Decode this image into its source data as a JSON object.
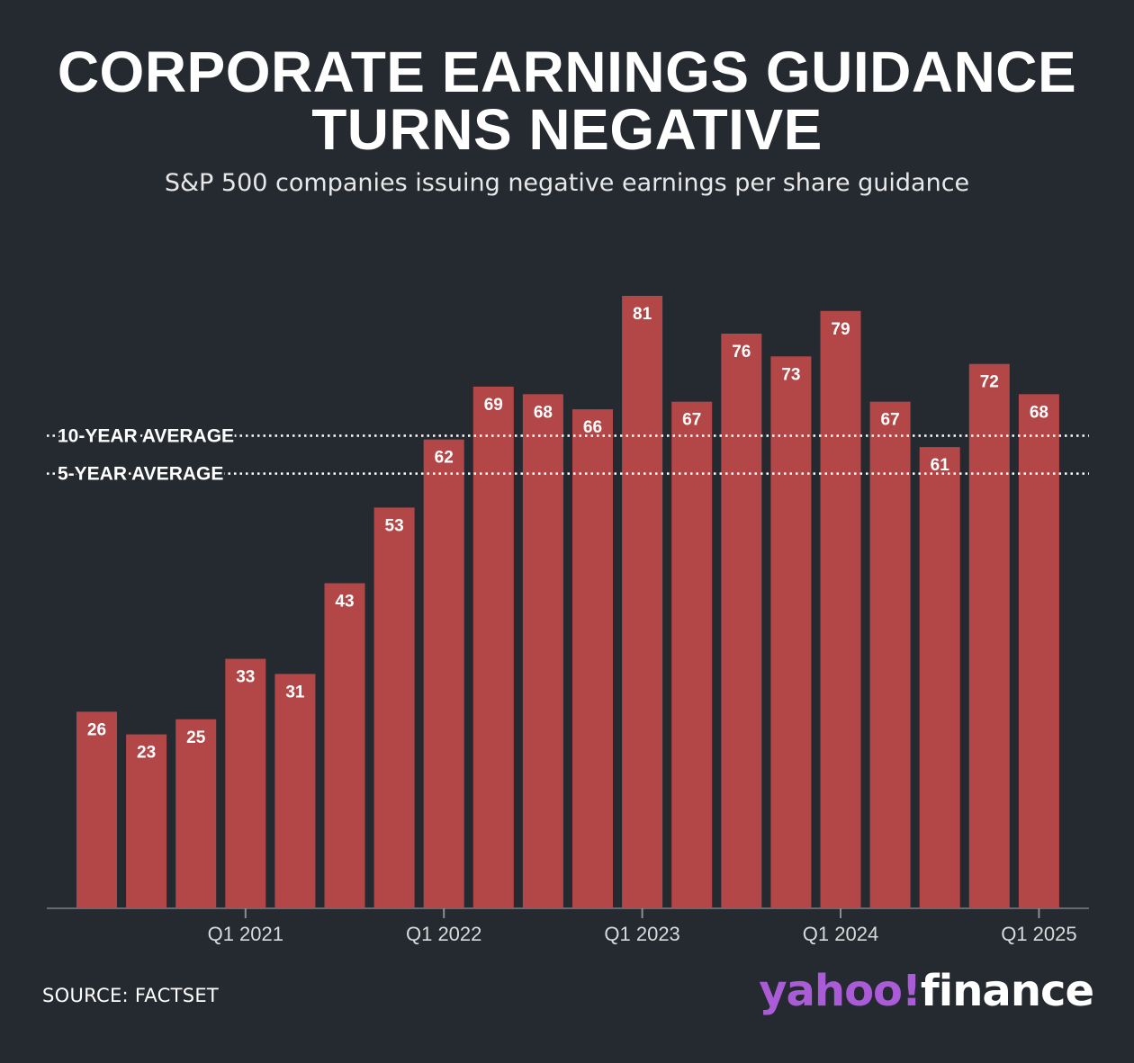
{
  "header": {
    "title_line1": "CORPORATE EARNINGS GUIDANCE",
    "title_line2": "TURNS NEGATIVE",
    "subtitle": "S&P 500 companies issuing negative earnings per share guidance"
  },
  "footer": {
    "source": "SOURCE: FACTSET",
    "logo_yahoo": "yahoo",
    "logo_bang": "!",
    "logo_finance": "finance"
  },
  "colors": {
    "background": "#252a31",
    "bar": "#b34646",
    "text": "#ffffff",
    "logo_purple": "#a95cd6"
  },
  "chart_data": {
    "type": "bar",
    "values": [
      26,
      23,
      25,
      33,
      31,
      43,
      53,
      62,
      69,
      68,
      66,
      81,
      67,
      76,
      73,
      79,
      67,
      61,
      72,
      68
    ],
    "tick_labels": [
      {
        "index": 3,
        "label": "Q1 2021"
      },
      {
        "index": 7,
        "label": "Q1 2022"
      },
      {
        "index": 11,
        "label": "Q1 2023"
      },
      {
        "index": 15,
        "label": "Q1 2024"
      },
      {
        "index": 19,
        "label": "Q1 2025"
      }
    ],
    "reference_lines": [
      {
        "label": "10-YEAR AVERAGE",
        "value": 62.5
      },
      {
        "label": "5-YEAR AVERAGE",
        "value": 57.5
      }
    ],
    "ylim": [
      0,
      81
    ],
    "data_labels": true,
    "grid": false,
    "legend": "none"
  }
}
